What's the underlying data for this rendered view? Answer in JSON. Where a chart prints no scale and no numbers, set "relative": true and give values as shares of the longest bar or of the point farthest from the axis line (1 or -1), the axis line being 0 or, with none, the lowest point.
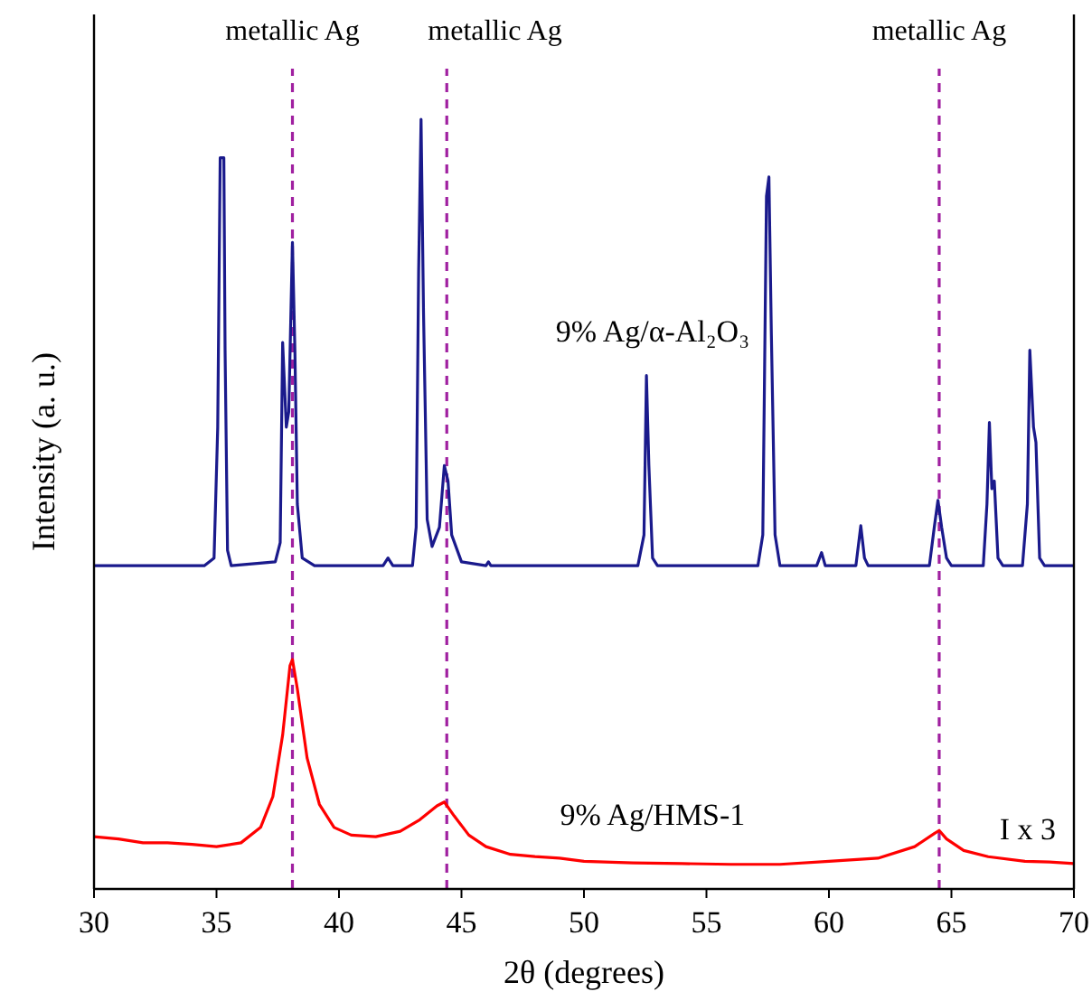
{
  "chart_data": {
    "type": "line",
    "xlabel": "2θ (degrees)",
    "ylabel": "Intensity (a. u.)",
    "relative": true,
    "xlim": [
      30,
      70
    ],
    "xticks": [
      30,
      35,
      40,
      45,
      50,
      55,
      60,
      65,
      70
    ],
    "series": [
      {
        "name": "9% Ag/α-Al₂O₃",
        "color": "#1a1a8c",
        "x": [
          30,
          34.5,
          34.9,
          35.05,
          35.15,
          35.3,
          35.35,
          35.45,
          35.6,
          37.4,
          37.6,
          37.7,
          37.85,
          37.95,
          38.1,
          38.2,
          38.3,
          38.5,
          39,
          41.8,
          42,
          42.2,
          43,
          43.15,
          43.25,
          43.35,
          43.45,
          43.6,
          43.8,
          44.1,
          44.3,
          44.45,
          44.6,
          45,
          46,
          46.1,
          46.2,
          52.2,
          52.45,
          52.55,
          52.65,
          52.8,
          53,
          57.1,
          57.3,
          57.45,
          57.55,
          57.65,
          57.8,
          58,
          59.5,
          59.7,
          59.85,
          61.1,
          61.3,
          61.45,
          61.6,
          64.1,
          64.3,
          64.45,
          64.6,
          64.8,
          65,
          66.3,
          66.45,
          66.55,
          66.65,
          66.75,
          66.9,
          67.1,
          67.9,
          68.1,
          68.2,
          68.35,
          68.45,
          68.6,
          68.8,
          70
        ],
        "values": [
          0.42,
          0.42,
          0.43,
          0.6,
          0.95,
          0.95,
          0.7,
          0.44,
          0.42,
          0.425,
          0.45,
          0.71,
          0.6,
          0.62,
          0.84,
          0.7,
          0.5,
          0.43,
          0.42,
          0.42,
          0.43,
          0.42,
          0.42,
          0.47,
          0.8,
          1,
          0.75,
          0.48,
          0.445,
          0.47,
          0.55,
          0.53,
          0.46,
          0.425,
          0.42,
          0.425,
          0.42,
          0.42,
          0.46,
          0.667,
          0.55,
          0.43,
          0.42,
          0.42,
          0.46,
          0.9,
          0.925,
          0.72,
          0.46,
          0.42,
          0.42,
          0.437,
          0.42,
          0.42,
          0.472,
          0.43,
          0.42,
          0.42,
          0.47,
          0.505,
          0.47,
          0.43,
          0.42,
          0.42,
          0.5,
          0.606,
          0.52,
          0.53,
          0.43,
          0.42,
          0.42,
          0.5,
          0.7,
          0.6,
          0.58,
          0.43,
          0.42,
          0.42
        ]
      },
      {
        "name": "9% Ag/HMS-1",
        "color": "#ff0000",
        "x": [
          30,
          31,
          32,
          33,
          34,
          35,
          36,
          36.8,
          37.3,
          37.7,
          38,
          38.1,
          38.3,
          38.7,
          39.2,
          39.8,
          40.5,
          41.5,
          42.5,
          43.3,
          44,
          44.3,
          44.7,
          45.3,
          46,
          47,
          48,
          49,
          50,
          52,
          54,
          56,
          58,
          60,
          62,
          63.5,
          64.3,
          64.5,
          64.8,
          65.5,
          66.5,
          68,
          69,
          70
        ],
        "values": [
          0.068,
          0.065,
          0.06,
          0.06,
          0.058,
          0.055,
          0.06,
          0.08,
          0.12,
          0.2,
          0.29,
          0.298,
          0.26,
          0.17,
          0.11,
          0.08,
          0.07,
          0.068,
          0.075,
          0.09,
          0.108,
          0.113,
          0.095,
          0.07,
          0.055,
          0.045,
          0.042,
          0.04,
          0.036,
          0.034,
          0.033,
          0.032,
          0.032,
          0.036,
          0.04,
          0.055,
          0.072,
          0.076,
          0.065,
          0.05,
          0.042,
          0.036,
          0.035,
          0.033
        ]
      }
    ],
    "ref_lines": [
      {
        "axis": "x",
        "value": 38.1,
        "label": "metallic Ag",
        "color": "#a020a0",
        "line_style": "dashed"
      },
      {
        "axis": "x",
        "value": 44.4,
        "label": "metallic Ag",
        "color": "#a020a0",
        "line_style": "dashed"
      },
      {
        "axis": "x",
        "value": 64.5,
        "label": "metallic Ag",
        "color": "#a020a0",
        "line_style": "dashed"
      }
    ],
    "annotations": [
      "I x 3"
    ]
  }
}
